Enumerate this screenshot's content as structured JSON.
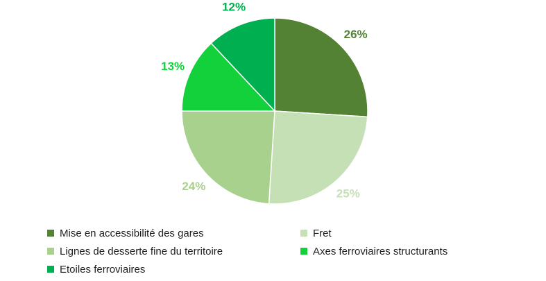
{
  "chart_data": {
    "type": "pie",
    "slices": [
      {
        "label": "Mise en accessibilité des gares",
        "value": 26,
        "display": "26%",
        "color": "#548235"
      },
      {
        "label": "Fret",
        "value": 25,
        "display": "25%",
        "color": "#c5e0b4"
      },
      {
        "label": "Lignes de desserte fine du territoire",
        "value": 24,
        "display": "24%",
        "color": "#a9d18e"
      },
      {
        "label": "Axes ferroviaires structurants",
        "value": 13,
        "display": "13%",
        "color": "#12d13a"
      },
      {
        "label": "Etoiles ferroviaires",
        "value": 12,
        "display": "12%",
        "color": "#00b050"
      }
    ],
    "legend_position": "bottom"
  }
}
